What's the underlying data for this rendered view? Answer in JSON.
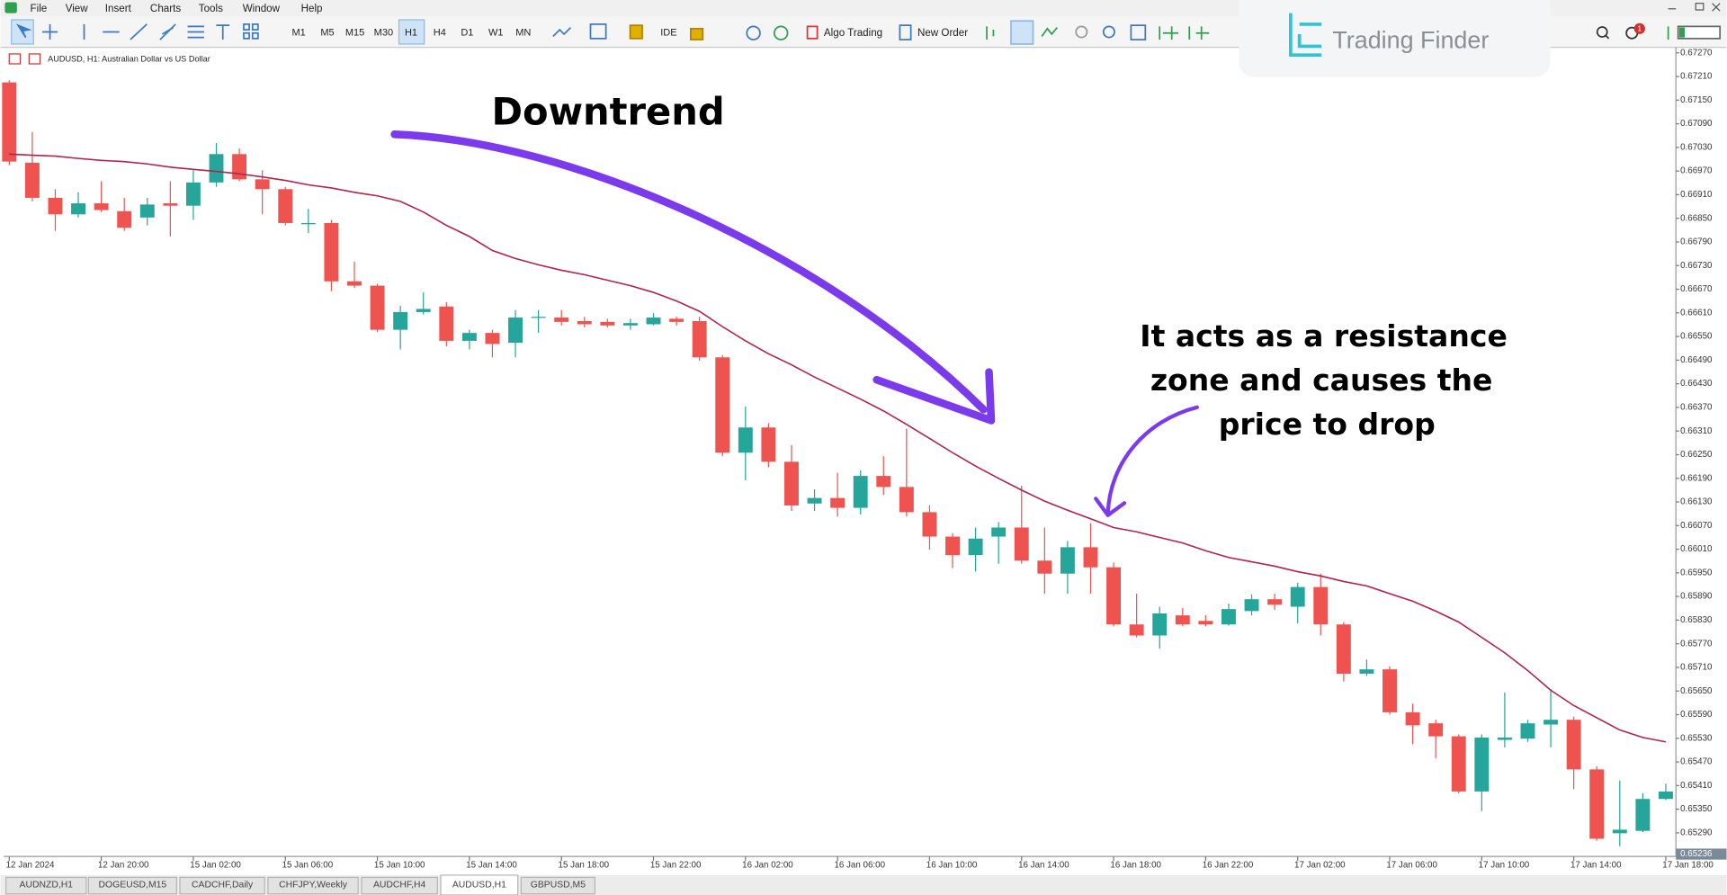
{
  "menu": [
    "File",
    "View",
    "Insert",
    "Charts",
    "Tools",
    "Window",
    "Help"
  ],
  "toolbar": {
    "timeframes": [
      "M1",
      "M5",
      "M15",
      "M30",
      "H1",
      "H4",
      "D1",
      "W1",
      "MN"
    ],
    "ide": "IDE",
    "algo_trading": "Algo Trading",
    "new_order": "New Order"
  },
  "logo": "Trading Finder",
  "notification_count": 1,
  "tabs": [
    "AUDNZD,H1",
    "DOGEUSD,M15",
    "CADCHF,Daily",
    "CHFJPY,Weekly",
    "AUDCHF,H4",
    "AUDUSD,H1",
    "GBPUSD,M5"
  ],
  "chart_data": {
    "type": "candlestick",
    "title": "AUDUSD, H1:  Australian Dollar vs US Dollar",
    "up_color": "#26a69a",
    "down_color": "#ef5350",
    "grid": false,
    "open": [
      0.67195,
      0.66991,
      0.66902,
      0.6686,
      0.66888,
      0.66868,
      0.66852,
      0.66888,
      0.66882,
      0.66941,
      0.67013,
      0.66949,
      0.66924,
      0.66835,
      0.66838,
      0.6669,
      0.66679,
      0.66567,
      0.66612,
      0.66626,
      0.66539,
      0.66559,
      0.66534,
      0.66598,
      0.66598,
      0.66589,
      0.66587,
      0.66578,
      0.66581,
      0.66595,
      0.66589,
      0.66497,
      0.66255,
      0.66319,
      0.66232,
      0.66126,
      0.6614,
      0.66115,
      0.66196,
      0.66168,
      0.66104,
      0.66042,
      0.65995,
      0.66042,
      0.66065,
      0.65981,
      0.65948,
      0.66015,
      0.65964,
      0.65819,
      0.65791,
      0.65842,
      0.65828,
      0.65819,
      0.65853,
      0.65883,
      0.65864,
      0.65914,
      0.65819,
      0.65694,
      0.65705,
      0.65596,
      0.65568,
      0.65535,
      0.65395,
      0.65526,
      0.65529,
      0.65565,
      0.65577,
      0.65451,
      0.65289,
      0.65295,
      0.65376
    ],
    "high": [
      0.672,
      0.67069,
      0.66924,
      0.66916,
      0.66944,
      0.66902,
      0.66902,
      0.66944,
      0.66972,
      0.67041,
      0.67027,
      0.66972,
      0.6693,
      0.66874,
      0.66846,
      0.6674,
      0.66684,
      0.66628,
      0.66662,
      0.66637,
      0.66567,
      0.66567,
      0.66617,
      0.66617,
      0.66617,
      0.666,
      0.66595,
      0.66595,
      0.66609,
      0.666,
      0.666,
      0.66503,
      0.66372,
      0.6633,
      0.66274,
      0.66162,
      0.66204,
      0.6621,
      0.66246,
      0.66316,
      0.66121,
      0.66051,
      0.66065,
      0.66079,
      0.66171,
      0.66065,
      0.66031,
      0.66076,
      0.65976,
      0.65897,
      0.65864,
      0.65861,
      0.65842,
      0.65872,
      0.65895,
      0.65897,
      0.65925,
      0.65948,
      0.65825,
      0.6573,
      0.65713,
      0.65618,
      0.65577,
      0.6554,
      0.6554,
      0.65646,
      0.65577,
      0.65655,
      0.65585,
      0.65459,
      0.65423,
      0.6539,
      0.65415
    ],
    "low": [
      0.66985,
      0.66893,
      0.66818,
      0.66852,
      0.66866,
      0.66818,
      0.66832,
      0.66804,
      0.66846,
      0.6693,
      0.66944,
      0.6686,
      0.66832,
      0.66813,
      0.66665,
      0.66673,
      0.66561,
      0.66517,
      0.66606,
      0.66525,
      0.66517,
      0.66497,
      0.66497,
      0.66559,
      0.66578,
      0.66573,
      0.66573,
      0.66567,
      0.66578,
      0.66578,
      0.66489,
      0.66246,
      0.66185,
      0.66218,
      0.66107,
      0.66107,
      0.66093,
      0.66098,
      0.66148,
      0.66093,
      0.66009,
      0.65962,
      0.65953,
      0.65973,
      0.65973,
      0.65897,
      0.65897,
      0.65897,
      0.65814,
      0.65786,
      0.65758,
      0.65814,
      0.65814,
      0.65816,
      0.65842,
      0.65856,
      0.65822,
      0.65791,
      0.65674,
      0.65688,
      0.6559,
      0.65515,
      0.65479,
      0.6539,
      0.65345,
      0.65507,
      0.65521,
      0.65507,
      0.65401,
      0.6527,
      0.65256,
      0.65292,
      0.65373
    ],
    "close": [
      0.66994,
      0.66902,
      0.6686,
      0.66888,
      0.66871,
      0.66826,
      0.66885,
      0.66882,
      0.66941,
      0.67013,
      0.66949,
      0.66924,
      0.66838,
      0.66838,
      0.6669,
      0.66679,
      0.66567,
      0.66612,
      0.6662,
      0.66539,
      0.66559,
      0.66531,
      0.66598,
      0.666,
      0.66587,
      0.66581,
      0.66578,
      0.66584,
      0.66598,
      0.66587,
      0.66497,
      0.66255,
      0.66319,
      0.66232,
      0.66121,
      0.6614,
      0.66115,
      0.66196,
      0.66168,
      0.66104,
      0.66042,
      0.65995,
      0.66037,
      0.66065,
      0.65981,
      0.65948,
      0.66015,
      0.65964,
      0.65819,
      0.65791,
      0.65847,
      0.65819,
      0.65819,
      0.65858,
      0.65883,
      0.65869,
      0.65914,
      0.65819,
      0.65694,
      0.65705,
      0.65596,
      0.65563,
      0.65535,
      0.65395,
      0.65532,
      0.65532,
      0.65568,
      0.65577,
      0.65451,
      0.65275,
      0.65298,
      0.65376,
      0.65395
    ],
    "moving_average": {
      "color": "#b0234a",
      "values": [
        0.67013,
        0.6701,
        0.67008,
        0.67002,
        0.66997,
        0.66994,
        0.66988,
        0.6698,
        0.66974,
        0.66969,
        0.66963,
        0.66955,
        0.66946,
        0.66935,
        0.66927,
        0.66916,
        0.66907,
        0.66893,
        0.66866,
        0.66832,
        0.66804,
        0.66768,
        0.66748,
        0.66732,
        0.66718,
        0.66707,
        0.66693,
        0.66679,
        0.66662,
        0.6664,
        0.66614,
        0.66575,
        0.66539,
        0.66506,
        0.66478,
        0.66447,
        0.66419,
        0.66391,
        0.66361,
        0.66327,
        0.66291,
        0.66255,
        0.66221,
        0.6619,
        0.6616,
        0.66132,
        0.66109,
        0.66087,
        0.66065,
        0.66054,
        0.6604,
        0.66026,
        0.66006,
        0.65989,
        0.65978,
        0.65967,
        0.65953,
        0.65942,
        0.65928,
        0.65917,
        0.65897,
        0.65878,
        0.65853,
        0.65825,
        0.65786,
        0.65747,
        0.65702,
        0.65652,
        0.65613,
        0.65582,
        0.65551,
        0.65532,
        0.65521
      ]
    },
    "current_price": 0.65236,
    "xlim": [
      -0.24,
      72.44
    ],
    "xticks": [
      {
        "value": 0,
        "label": "12 Jan 2024"
      },
      {
        "value": 4,
        "label": "12 Jan 20:00"
      },
      {
        "value": 8,
        "label": "15 Jan 02:00"
      },
      {
        "value": 12,
        "label": "15 Jan 06:00"
      },
      {
        "value": 16,
        "label": "15 Jan 10:00"
      },
      {
        "value": 20,
        "label": "15 Jan 14:00"
      },
      {
        "value": 24,
        "label": "15 Jan 18:00"
      },
      {
        "value": 28,
        "label": "15 Jan 22:00"
      },
      {
        "value": 32,
        "label": "16 Jan 02:00"
      },
      {
        "value": 36,
        "label": "16 Jan 06:00"
      },
      {
        "value": 40,
        "label": "16 Jan 10:00"
      },
      {
        "value": 44,
        "label": "16 Jan 14:00"
      },
      {
        "value": 48,
        "label": "16 Jan 18:00"
      },
      {
        "value": 52,
        "label": "16 Jan 22:00"
      },
      {
        "value": 56,
        "label": "17 Jan 02:00"
      },
      {
        "value": 60,
        "label": "17 Jan 06:00"
      },
      {
        "value": 64,
        "label": "17 Jan 10:00"
      },
      {
        "value": 68,
        "label": "17 Jan 14:00"
      },
      {
        "value": 72,
        "label": "17 Jan 18:00"
      }
    ],
    "ylim": [
      0.6523,
      0.67284
    ],
    "yticks": [
      {
        "value": 0.6727,
        "label": "0.67270"
      },
      {
        "value": 0.6721,
        "label": "0.67210"
      },
      {
        "value": 0.6715,
        "label": "0.67150"
      },
      {
        "value": 0.6709,
        "label": "0.67090"
      },
      {
        "value": 0.6703,
        "label": "0.67030"
      },
      {
        "value": 0.6697,
        "label": "0.66970"
      },
      {
        "value": 0.6691,
        "label": "0.66910"
      },
      {
        "value": 0.6685,
        "label": "0.66850"
      },
      {
        "value": 0.6679,
        "label": "0.66790"
      },
      {
        "value": 0.6673,
        "label": "0.66730"
      },
      {
        "value": 0.6667,
        "label": "0.66670"
      },
      {
        "value": 0.6661,
        "label": "0.66610"
      },
      {
        "value": 0.6655,
        "label": "0.66550"
      },
      {
        "value": 0.6649,
        "label": "0.66490"
      },
      {
        "value": 0.6643,
        "label": "0.66430"
      },
      {
        "value": 0.6637,
        "label": "0.66370"
      },
      {
        "value": 0.6631,
        "label": "0.66310"
      },
      {
        "value": 0.6625,
        "label": "0.66250"
      },
      {
        "value": 0.6619,
        "label": "0.66190"
      },
      {
        "value": 0.6613,
        "label": "0.66130"
      },
      {
        "value": 0.6607,
        "label": "0.66070"
      },
      {
        "value": 0.6601,
        "label": "0.66010"
      },
      {
        "value": 0.6595,
        "label": "0.65950"
      },
      {
        "value": 0.6589,
        "label": "0.65890"
      },
      {
        "value": 0.6583,
        "label": "0.65830"
      },
      {
        "value": 0.6577,
        "label": "0.65770"
      },
      {
        "value": 0.6571,
        "label": "0.65710"
      },
      {
        "value": 0.6565,
        "label": "0.65650"
      },
      {
        "value": 0.6559,
        "label": "0.65590"
      },
      {
        "value": 0.6553,
        "label": "0.65530"
      },
      {
        "value": 0.6547,
        "label": "0.65470"
      },
      {
        "value": 0.6541,
        "label": "0.65410"
      },
      {
        "value": 0.6535,
        "label": "0.65350"
      },
      {
        "value": 0.6529,
        "label": "0.65290"
      }
    ],
    "annotations": [
      {
        "text": "Downtrend"
      },
      {
        "lines": [
          "It acts as a resistance",
          "zone and causes the",
          "price to drop"
        ]
      }
    ]
  }
}
